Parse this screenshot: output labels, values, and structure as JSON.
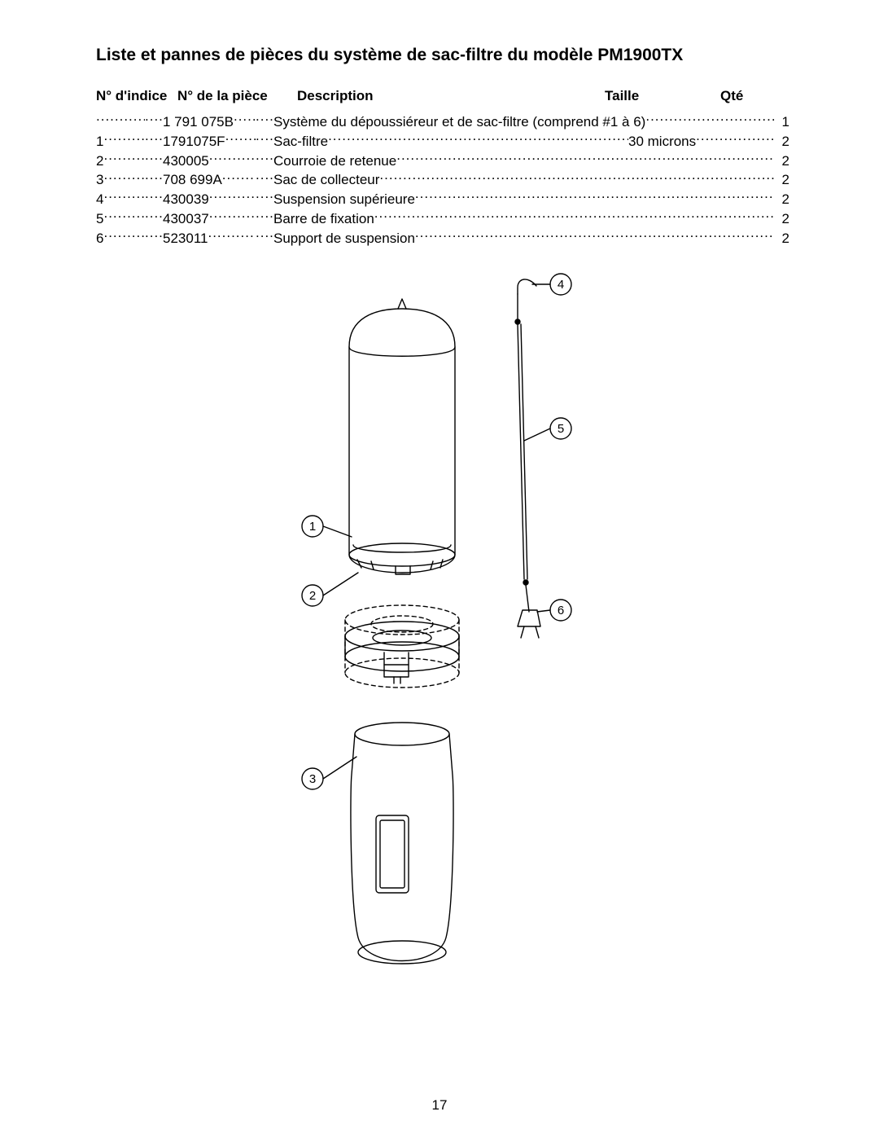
{
  "title": "Liste et pannes de pièces du système de sac-filtre du modèle PM1900TX",
  "headers": {
    "index": "N° d'indice",
    "part": "N° de la pièce",
    "desc": "Description",
    "size": "Taille",
    "qty": "Qté"
  },
  "rows": [
    {
      "index": "",
      "part": "1 791 075B",
      "desc": "Système du dépoussiéreur et de sac-filtre (comprend #1 à 6)",
      "size": "",
      "qty": "1"
    },
    {
      "index": "1",
      "part": "1791075F",
      "desc": "Sac-filtre",
      "size": "30 microns",
      "qty": "2"
    },
    {
      "index": "2",
      "part": "430005",
      "desc": "Courroie de retenue",
      "size": "",
      "qty": "2"
    },
    {
      "index": "3",
      "part": "708 699A",
      "desc": "Sac de collecteur",
      "size": "",
      "qty": "2"
    },
    {
      "index": "4",
      "part": "430039",
      "desc": "Suspension supérieure",
      "size": "",
      "qty": "2"
    },
    {
      "index": "5",
      "part": "430037",
      "desc": "Barre de fixation",
      "size": "",
      "qty": "2"
    },
    {
      "index": "6",
      "part": "523011",
      "desc": "Support de suspension",
      "size": "",
      "qty": "2"
    }
  ],
  "diagram_labels": {
    "l1": "1",
    "l2": "2",
    "l3": "3",
    "l4": "4",
    "l5": "5",
    "l6": "6"
  },
  "page_number": "17",
  "style": {
    "stroke": "#000000",
    "bg": "#ffffff",
    "font": "Arial",
    "title_fs": 21,
    "body_fs": 17
  }
}
